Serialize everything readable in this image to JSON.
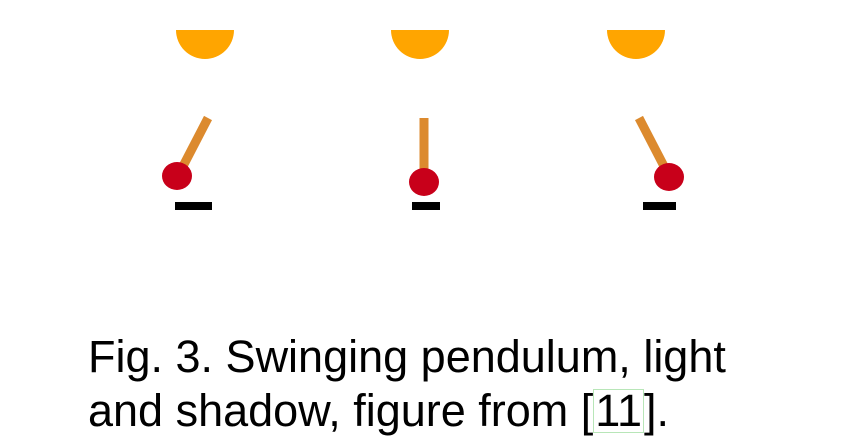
{
  "figure": {
    "colors": {
      "light": "#ffa500",
      "rod": "#dc8a2e",
      "bob": "#c8001a",
      "shadow": "#000000"
    },
    "pendulums": [
      {
        "angle_deg": 25
      },
      {
        "angle_deg": 0
      },
      {
        "angle_deg": -25
      }
    ]
  },
  "caption": {
    "line1": "Fig. 3. Swinging pendulum, light",
    "line2_prefix": "and shadow, figure from ",
    "ref_open": "[",
    "ref_number": "11",
    "ref_close": "].",
    "citation_box_color": "#b8e6b8"
  }
}
